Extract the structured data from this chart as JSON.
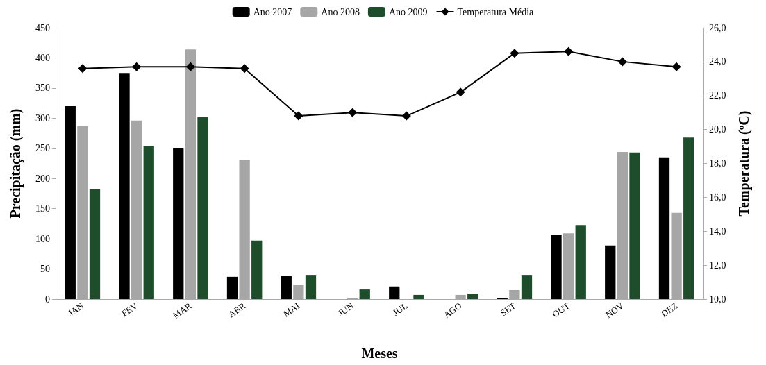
{
  "chart_data": {
    "type": "bar",
    "xlabel": "Meses",
    "ylabel": "Precipitação (mm)",
    "y2label": "Temperatura (ºC)",
    "categories": [
      "JAN",
      "FEV",
      "MAR",
      "ABR",
      "MAI",
      "JUN",
      "JUL",
      "AGO",
      "SET",
      "OUT",
      "NOV",
      "DEZ"
    ],
    "series": [
      {
        "name": "Ano 2007",
        "color": "#000000",
        "values": [
          320,
          375,
          250,
          37,
          38,
          0,
          21,
          0,
          2,
          107,
          89,
          235
        ]
      },
      {
        "name": "Ano 2008",
        "color": "#a6a6a6",
        "values": [
          287,
          296,
          414,
          231,
          24,
          2,
          0,
          7,
          15,
          109,
          244,
          143
        ]
      },
      {
        "name": "Ano 2009",
        "color": "#1e4d2b",
        "values": [
          183,
          254,
          302,
          97,
          39,
          16,
          7,
          9,
          39,
          123,
          243,
          268
        ]
      },
      {
        "name": "Temperatura Média",
        "type": "line",
        "axis": "y2",
        "color": "#000000",
        "marker": "diamond",
        "values": [
          23.6,
          23.7,
          23.7,
          23.6,
          20.8,
          21.0,
          20.8,
          22.2,
          24.5,
          24.6,
          24.0,
          23.7
        ]
      }
    ],
    "ylim": [
      0,
      450
    ],
    "yticks": [
      0,
      50,
      100,
      150,
      200,
      250,
      300,
      350,
      400,
      450
    ],
    "y2lim": [
      10,
      26
    ],
    "y2ticks": [
      {
        "value": 10,
        "label": "10,0"
      },
      {
        "value": 12,
        "label": "12,0"
      },
      {
        "value": 14,
        "label": "14,0"
      },
      {
        "value": 16,
        "label": "16,0"
      },
      {
        "value": 18,
        "label": "18,0"
      },
      {
        "value": 20,
        "label": "20,0"
      },
      {
        "value": 22,
        "label": "22,0"
      },
      {
        "value": 24,
        "label": "24,0"
      },
      {
        "value": 26,
        "label": "26,0"
      }
    ],
    "grid": false,
    "legend": "top"
  }
}
